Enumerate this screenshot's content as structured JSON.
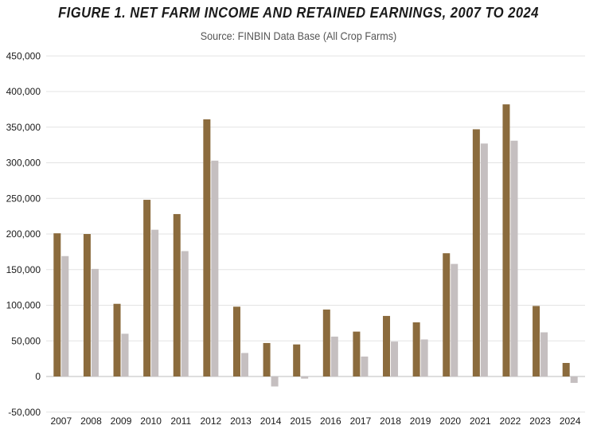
{
  "chart_data": {
    "type": "bar",
    "title": "FIGURE 1. NET FARM INCOME AND RETAINED EARNINGS, 2007 TO 2024",
    "subtitle": "Source:  FINBIN Data Base (All Crop Farms)",
    "xlabel": "",
    "ylabel": "",
    "categories": [
      "2007",
      "2008",
      "2009",
      "2010",
      "2011",
      "2012",
      "2013",
      "2014",
      "2015",
      "2016",
      "2017",
      "2018",
      "2019",
      "2020",
      "2021",
      "2022",
      "2023",
      "2024"
    ],
    "series": [
      {
        "color": "#8B6B3D",
        "values": [
          201000,
          200000,
          102000,
          248000,
          228000,
          361000,
          98000,
          47000,
          45000,
          94000,
          63000,
          85000,
          76000,
          173000,
          347000,
          382000,
          99000,
          19000
        ]
      },
      {
        "color": "#C5BFC0",
        "values": [
          169000,
          151000,
          60000,
          206000,
          176000,
          303000,
          33000,
          -14000,
          -3000,
          56000,
          28000,
          49000,
          52000,
          158000,
          327000,
          331000,
          62000,
          -9000
        ]
      }
    ],
    "ylim": [
      -50000,
      450000
    ],
    "yticks": [
      -50000,
      0,
      50000,
      100000,
      150000,
      200000,
      250000,
      300000,
      350000,
      400000,
      450000
    ],
    "ytick_labels": [
      "-50,000",
      "0",
      "50,000",
      "100,000",
      "150,000",
      "200,000",
      "250,000",
      "300,000",
      "350,000",
      "400,000",
      "450,000"
    ],
    "grid": true,
    "legend": "none"
  }
}
